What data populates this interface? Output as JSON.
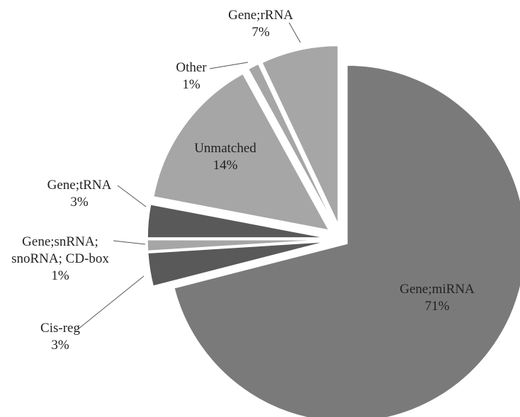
{
  "chart_data": {
    "type": "pie",
    "categories": [
      "Gene;miRNA",
      "Cis-reg",
      "Gene;snRNA; snoRNA; CD-box",
      "Gene;tRNA",
      "Unmatched",
      "Other",
      "Gene;rRNA"
    ],
    "values": [
      71,
      3,
      1,
      3,
      14,
      1,
      7
    ],
    "value_labels": [
      "71%",
      "3%",
      "1%",
      "3%",
      "14%",
      "1%",
      "7%"
    ],
    "colors": [
      "#7a7a7a",
      "#595959",
      "#a6a6a6",
      "#595959",
      "#a6a6a6",
      "#a6a6a6",
      "#a6a6a6"
    ]
  }
}
